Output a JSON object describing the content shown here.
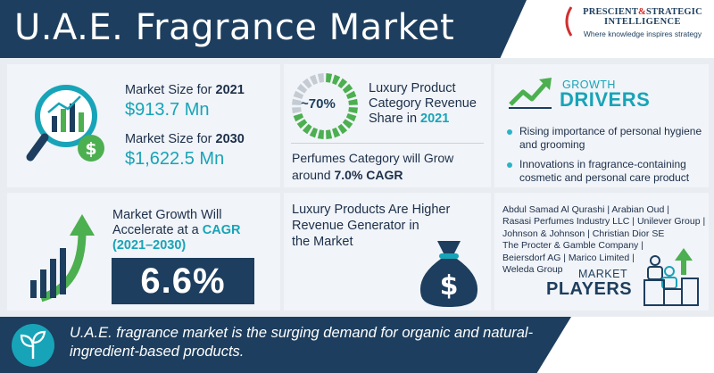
{
  "header": {
    "title": "U.A.E. Fragrance Market",
    "logo_line1_a": "PRESCIENT",
    "logo_amp": "&",
    "logo_line1_b": "STRATEGIC",
    "logo_line2": "INTELLIGENCE",
    "logo_tagline": "Where knowledge inspires strategy"
  },
  "market_size": {
    "label_2021": "Market Size for",
    "year_2021": "2021",
    "value_2021": "$913.7 Mn",
    "label_2030": "Market Size for",
    "year_2030": "2030",
    "value_2030": "$1,622.5 Mn",
    "icon": "magnifier-chart-dollar-icon"
  },
  "luxury_share": {
    "ring_value": "~70%",
    "ring_fraction": 0.7,
    "line1": "Luxury Product",
    "line2": "Category Revenue",
    "line3": "Share in",
    "year": "2021"
  },
  "perfumes": {
    "line1": "Perfumes Category will Grow",
    "line2_prefix": "around",
    "cagr": "7.0% CAGR"
  },
  "growth_drivers": {
    "top": "GROWTH",
    "main": "DRIVERS",
    "icon": "trend-up-arrow-icon",
    "items": [
      "Rising importance of personal hygiene and grooming",
      "Innovations in fragrance-containing cosmetic and personal care product"
    ]
  },
  "market_growth": {
    "line1": "Market Growth Will",
    "line2_prefix": "Accelerate at a",
    "line2_accent": "CAGR",
    "period": "(2021–2030)",
    "value": "6.6%",
    "icon": "growth-bars-arrow-icon"
  },
  "luxury_generator": {
    "line1": "Luxury Products Are Higher",
    "line2": "Revenue Generator in",
    "line3": "the Market",
    "icon": "money-bag-icon"
  },
  "market_players": {
    "lines": [
      "Abdul Samad Al Qurashi | Arabian Oud |",
      "Rasasi Perfumes Industry LLC | Unilever Group |",
      "Johnson & Johnson | Christian Dior SE",
      "The Procter & Gamble Company |",
      "Beiersdorf AG | Marico Limited |",
      "Weleda Group"
    ],
    "top": "MARKET",
    "main": "PLAYERS",
    "icon": "people-podium-icon"
  },
  "footer": {
    "text": "U.A.E. fragrance market is the surging demand for organic and natural-ingredient-based products.",
    "icon": "leaf-sprout-icon"
  },
  "colors": {
    "navy": "#1d3e5e",
    "teal": "#17a4b8",
    "green": "#4caf50",
    "red": "#d0302f"
  }
}
